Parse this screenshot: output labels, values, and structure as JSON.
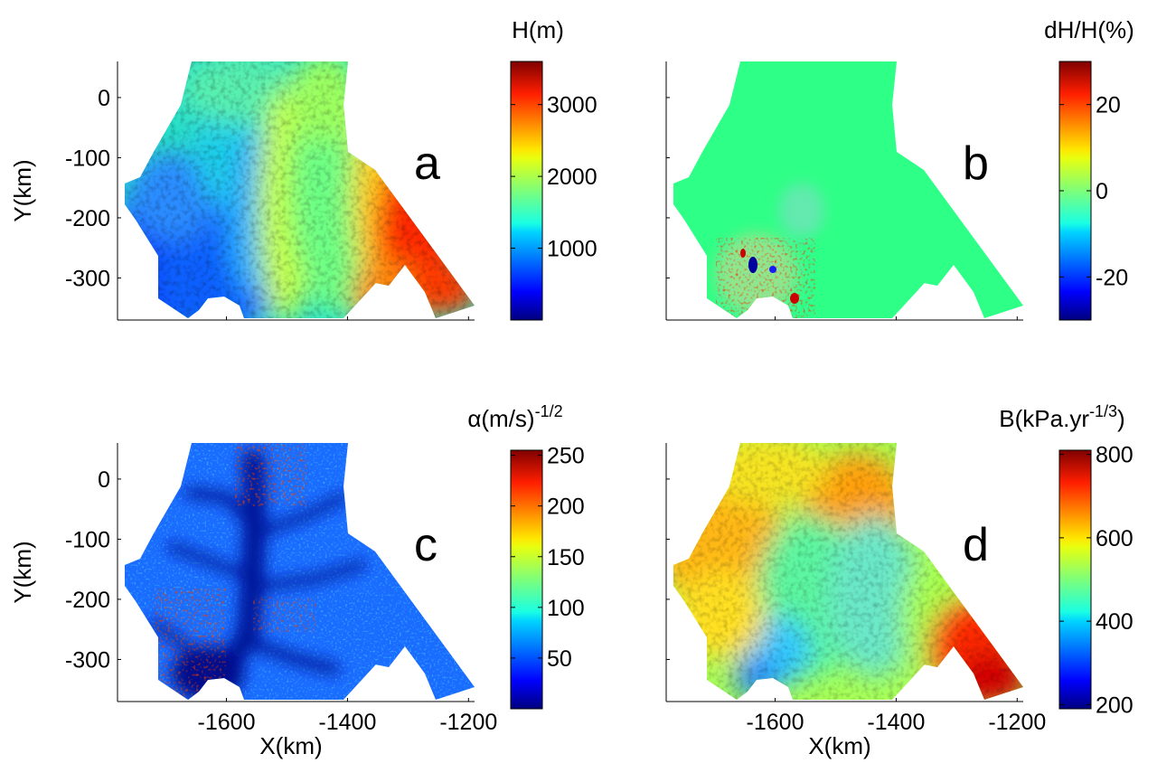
{
  "chart_data": [
    {
      "type": "heatmap",
      "panel_label": "a",
      "colorbar": {
        "title_main": "H(m)",
        "title_sup": "",
        "ticks": [
          "1000",
          "2000",
          "3000"
        ],
        "tick_values": [
          1000,
          2000,
          3000
        ],
        "range": [
          0,
          3600
        ]
      },
      "xlabel": "",
      "ylabel": "Y(km)",
      "xticks": [],
      "yticks": [
        "0",
        "-100",
        "-200",
        "-300"
      ],
      "xlim": [
        -1780,
        -1190
      ],
      "ylim": [
        -370,
        60
      ],
      "field": "ice thickness: low (blue) in the south-west, mid (cyan/green/yellow) across the centre with a yellow ridge near x=-1570, high (red) in the south-east"
    },
    {
      "type": "heatmap",
      "panel_label": "b",
      "colorbar": {
        "title_main": "dH/H(%)",
        "title_sup": "",
        "ticks": [
          "-20",
          "0",
          "20"
        ],
        "tick_values": [
          -20,
          0,
          20
        ],
        "range": [
          -30,
          30
        ]
      },
      "xlabel": "",
      "ylabel": "",
      "xticks": [],
      "yticks": [],
      "xlim": [
        -1780,
        -1190
      ],
      "ylim": [
        -370,
        60
      ],
      "field": "nearly uniform 0 with a noisy patch of +/- values near x=-1640, y=-300"
    },
    {
      "type": "heatmap",
      "panel_label": "c",
      "colorbar": {
        "title_main": "α(m/s)",
        "title_sup": "-1/2",
        "ticks": [
          "50",
          "100",
          "150",
          "200",
          "250"
        ],
        "tick_values": [
          50,
          100,
          150,
          200,
          250
        ],
        "range": [
          0,
          255
        ]
      },
      "xlabel": "X(km)",
      "ylabel": "Y(km)",
      "xticks": [
        "-1600",
        "-1400",
        "-1200"
      ],
      "yticks": [
        "0",
        "-100",
        "-200",
        "-300"
      ],
      "xlim": [
        -1780,
        -1190
      ],
      "ylim": [
        -370,
        60
      ],
      "field": "friction: mostly blue, dark blue along branching ice streams, red speckle near the top and in the south-west"
    },
    {
      "type": "heatmap",
      "panel_label": "d",
      "colorbar": {
        "title_main": "B(kPa.yr",
        "title_sup": "-1/3",
        "title_close": ")",
        "ticks": [
          "200",
          "400",
          "600",
          "800"
        ],
        "tick_values": [
          200,
          400,
          600,
          800
        ],
        "range": [
          190,
          810
        ]
      },
      "xlabel": "X(km)",
      "ylabel": "",
      "xticks": [
        "-1600",
        "-1400",
        "-1200"
      ],
      "yticks": [],
      "xlim": [
        -1780,
        -1190
      ],
      "ylim": [
        -370,
        60
      ],
      "field": "rigidity: orange/yellow in the north and west, green-cyan in the centre, red in the south-east"
    }
  ]
}
